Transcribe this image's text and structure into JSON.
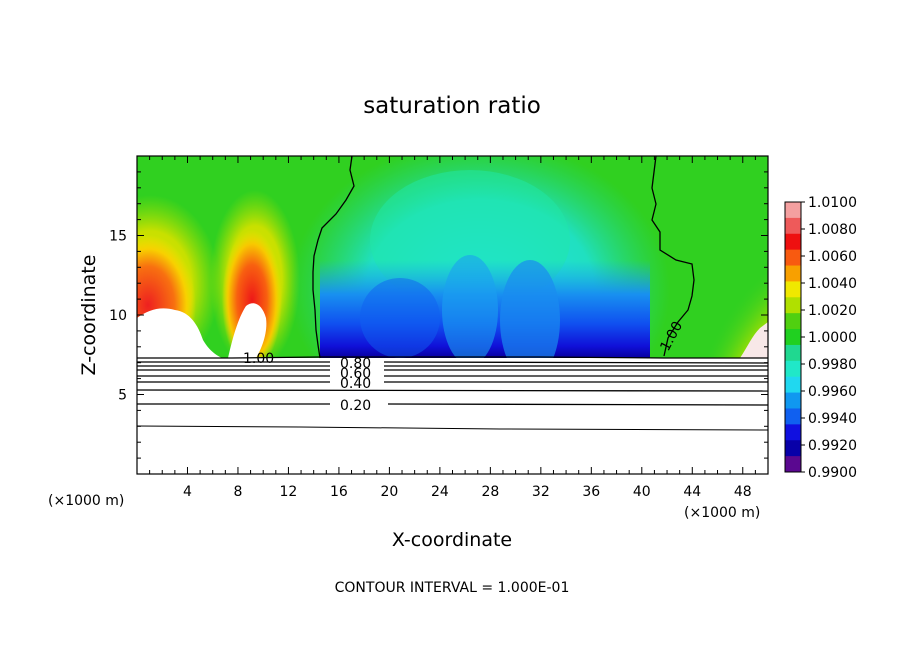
{
  "chart_data": {
    "type": "heatmap",
    "title": "saturation ratio",
    "xlabel": "X-coordinate",
    "ylabel": "Z-coordinate",
    "x_unit": "(×1000 m)",
    "x_unit_right": "(×1000 m)",
    "xlim": [
      0,
      50
    ],
    "ylim": [
      0,
      20
    ],
    "x_ticks": [
      4,
      8,
      12,
      16,
      20,
      24,
      28,
      32,
      36,
      40,
      44,
      48
    ],
    "y_ticks": [
      5,
      10,
      15
    ],
    "colorbar": {
      "min": 0.99,
      "max": 1.01,
      "labels": [
        "1.0100",
        "1.0080",
        "1.0060",
        "1.0040",
        "1.0020",
        "1.0000",
        "0.9980",
        "0.9960",
        "0.9940",
        "0.9920",
        "0.9900"
      ],
      "colors": [
        "#f4a0a0",
        "#ee5a5a",
        "#ee1010",
        "#f85a10",
        "#f8a000",
        "#f0e800",
        "#b0e000",
        "#50d010",
        "#20d020",
        "#20d890",
        "#20e8c8",
        "#20d8f0",
        "#1098f0",
        "#1060f0",
        "#1010e0",
        "#0800a8",
        "#5a0890"
      ]
    },
    "contours": [
      {
        "level": "1.00",
        "x": [
          15.0,
          14.4,
          14.1,
          14.2,
          14.6,
          15.6,
          16.6,
          17.0,
          17.0,
          17.4
        ]
      },
      {
        "level": "1.00",
        "x": [
          41.5,
          41.7,
          41.8,
          41.5,
          41.3,
          42.6,
          44.0,
          44.2,
          45.6,
          41.3
        ]
      },
      {
        "level": "0.80",
        "z": 7.2
      },
      {
        "level": "0.60",
        "z": 6.8
      },
      {
        "level": "0.40",
        "z": 6.2
      },
      {
        "level": "0.20",
        "z": 4.4
      }
    ],
    "contour_labels": [
      "1.00",
      "1.00",
      "0.80",
      "0.60",
      "0.40",
      "0.20"
    ],
    "footnote": "CONTOUR INTERVAL = 1.000E-01"
  }
}
